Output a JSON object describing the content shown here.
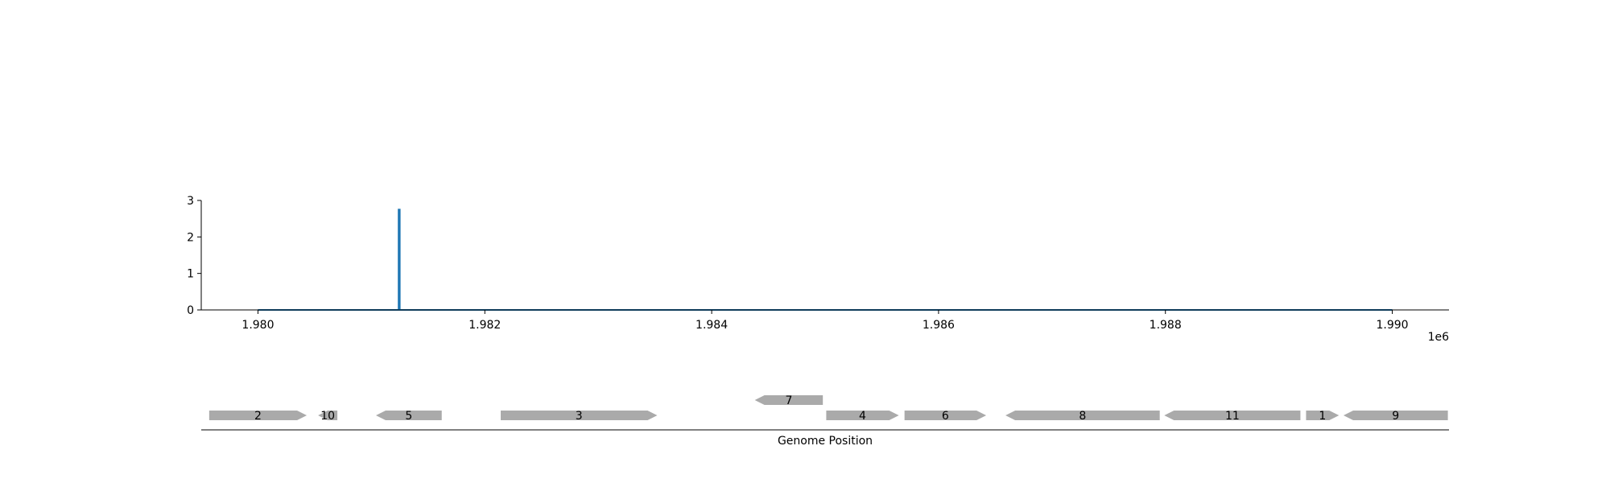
{
  "chart_data": [
    {
      "type": "line",
      "x_offset_label": "1e6",
      "xlim": [
        1979500,
        1990500
      ],
      "ylim": [
        0,
        3
      ],
      "xticks": [
        {
          "value": 1980000,
          "label": "1.980"
        },
        {
          "value": 1982000,
          "label": "1.982"
        },
        {
          "value": 1984000,
          "label": "1.984"
        },
        {
          "value": 1986000,
          "label": "1.986"
        },
        {
          "value": 1988000,
          "label": "1.988"
        },
        {
          "value": 1990000,
          "label": "1.990"
        }
      ],
      "yticks": [
        {
          "value": 0,
          "label": "0"
        },
        {
          "value": 1,
          "label": "1"
        },
        {
          "value": 2,
          "label": "2"
        },
        {
          "value": 3,
          "label": "3"
        }
      ],
      "series": [
        {
          "color": "#1f77b4",
          "x": [
            1980000,
            1981240,
            1981240,
            1981250,
            1981250,
            1990000
          ],
          "y": [
            0,
            0,
            2.75,
            2.75,
            0,
            0
          ]
        }
      ],
      "grid": false
    },
    {
      "type": "gene-track",
      "xlabel": "Genome Position",
      "xlim": [
        1979500,
        1990500
      ],
      "color": "#aaaaaa",
      "genes": [
        {
          "label": "2",
          "start": 1979570,
          "end": 1980430,
          "strand": "+",
          "row": 0
        },
        {
          "label": "10",
          "start": 1980530,
          "end": 1980700,
          "strand": "-",
          "row": 0
        },
        {
          "label": "5",
          "start": 1981040,
          "end": 1981620,
          "strand": "-",
          "row": 0
        },
        {
          "label": "3",
          "start": 1982140,
          "end": 1983520,
          "strand": "+",
          "row": 0
        },
        {
          "label": "7",
          "start": 1984380,
          "end": 1984980,
          "strand": "-",
          "row": 1
        },
        {
          "label": "4",
          "start": 1985010,
          "end": 1985650,
          "strand": "+",
          "row": 0
        },
        {
          "label": "6",
          "start": 1985700,
          "end": 1986420,
          "strand": "+",
          "row": 0
        },
        {
          "label": "8",
          "start": 1986590,
          "end": 1987950,
          "strand": "-",
          "row": 0
        },
        {
          "label": "11",
          "start": 1987990,
          "end": 1989190,
          "strand": "-",
          "row": 0
        },
        {
          "label": "1",
          "start": 1989240,
          "end": 1989530,
          "strand": "+",
          "row": 0
        },
        {
          "label": "9",
          "start": 1989570,
          "end": 1990490,
          "strand": "-",
          "row": 0
        }
      ]
    }
  ]
}
